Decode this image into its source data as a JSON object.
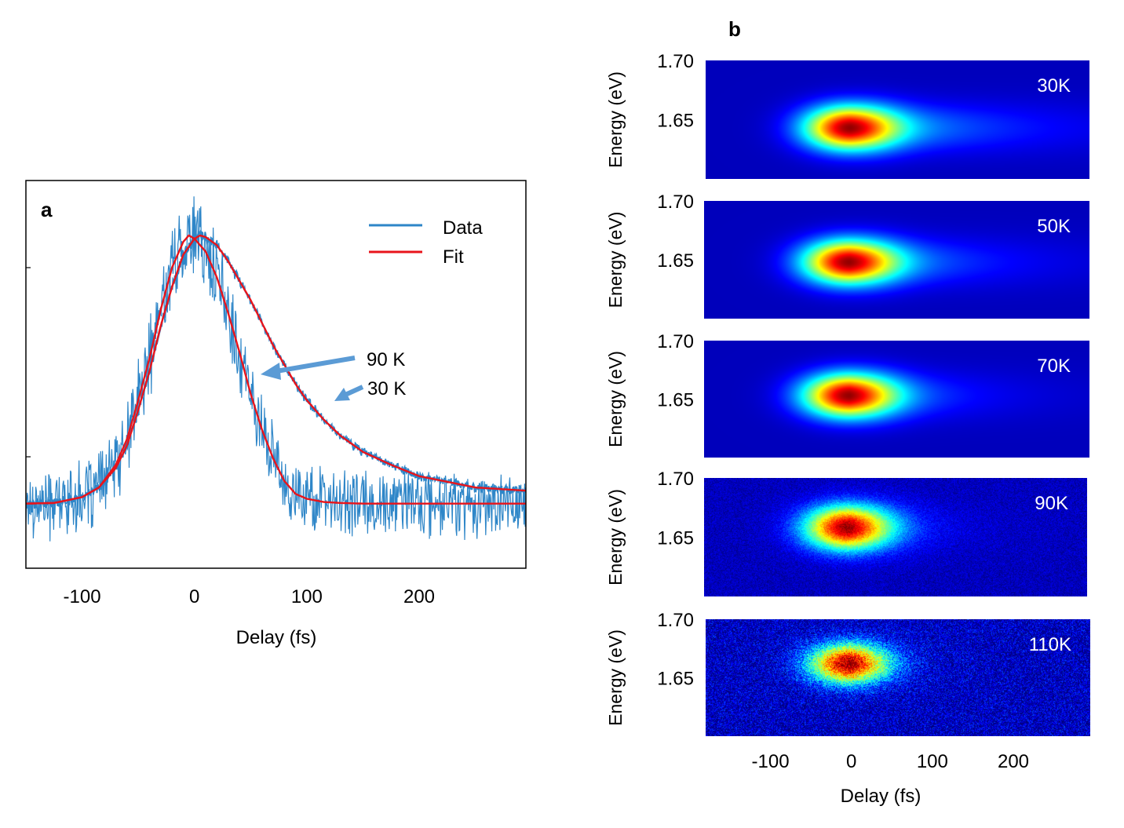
{
  "colors": {
    "data_line": "#2e86c8",
    "fit_line": "#e8141b",
    "arrow": "#5b9bd5",
    "heatmap_bg": "#00008f",
    "panel_label": "#ffffff"
  },
  "chart_data": [
    {
      "panel": "a",
      "type": "line",
      "title": "",
      "xlabel": "Delay (fs)",
      "ylabel": "",
      "xlim": [
        -150,
        295
      ],
      "ylim": [
        -0.05,
        1.15
      ],
      "xticks": [
        -100,
        0,
        100,
        200
      ],
      "xtick_labels": [
        "-100",
        "0",
        "100",
        "200"
      ],
      "grid": false,
      "legend": {
        "position": "top-right",
        "entries": [
          {
            "label": "Data",
            "color": "#2e86c8"
          },
          {
            "label": "Fit",
            "color": "#e8141b"
          }
        ]
      },
      "annotations": [
        {
          "text": "90 K",
          "points_to": {
            "x": 65,
            "y": 0.56
          }
        },
        {
          "text": "30 K",
          "points_to": {
            "x": 130,
            "y": 0.45
          }
        }
      ],
      "series": [
        {
          "name": "90 K fit",
          "style": "fit",
          "baseline": 0.15,
          "peak": 0.98,
          "x": [
            -150,
            -125,
            -100,
            -85,
            -70,
            -60,
            -50,
            -40,
            -30,
            -20,
            -10,
            -5,
            0,
            10,
            20,
            30,
            40,
            50,
            60,
            70,
            80,
            90,
            100,
            115,
            130,
            150,
            175,
            200,
            250,
            295
          ],
          "y": [
            0.15,
            0.152,
            0.17,
            0.2,
            0.27,
            0.35,
            0.47,
            0.6,
            0.75,
            0.88,
            0.96,
            0.98,
            0.97,
            0.93,
            0.85,
            0.74,
            0.62,
            0.49,
            0.38,
            0.29,
            0.22,
            0.18,
            0.165,
            0.155,
            0.152,
            0.15,
            0.15,
            0.15,
            0.15,
            0.15
          ]
        },
        {
          "name": "30 K fit",
          "style": "fit",
          "baseline": 0.15,
          "peak": 0.98,
          "x": [
            -150,
            -125,
            -100,
            -85,
            -70,
            -60,
            -50,
            -40,
            -30,
            -20,
            -10,
            0,
            5,
            10,
            20,
            30,
            40,
            50,
            60,
            70,
            80,
            90,
            100,
            115,
            130,
            150,
            175,
            200,
            250,
            295
          ],
          "y": [
            0.15,
            0.152,
            0.17,
            0.2,
            0.26,
            0.33,
            0.44,
            0.56,
            0.7,
            0.82,
            0.92,
            0.97,
            0.98,
            0.975,
            0.95,
            0.9,
            0.84,
            0.78,
            0.71,
            0.64,
            0.58,
            0.52,
            0.47,
            0.41,
            0.36,
            0.31,
            0.27,
            0.235,
            0.2,
            0.19
          ]
        },
        {
          "name": "90 K data",
          "style": "data",
          "noise_amplitude": 0.09,
          "follows": "90 K fit"
        },
        {
          "name": "30 K data",
          "style": "data",
          "noise_amplitude": 0.012,
          "follows": "30 K fit"
        }
      ]
    },
    {
      "panel": "b",
      "type": "heatmap",
      "xlabel": "Delay (fs)",
      "ylabel": "Energy (eV)",
      "xlim": [
        -180,
        295
      ],
      "ylim": [
        1.6,
        1.7
      ],
      "xticks": [
        -100,
        0,
        100,
        200
      ],
      "xtick_labels": [
        "-100",
        "0",
        "100",
        "200"
      ],
      "yticks": [
        1.7,
        1.65
      ],
      "ytick_labels": [
        "1.70",
        "1.65"
      ],
      "colormap": "jet",
      "panels": [
        {
          "label": "30K",
          "center_delay": 0,
          "center_energy": 1.643,
          "peak_width": 40,
          "tail_length": 150,
          "energy_width": 0.013,
          "noise": 0.0
        },
        {
          "label": "50K",
          "center_delay": 0,
          "center_energy": 1.648,
          "peak_width": 40,
          "tail_length": 120,
          "energy_width": 0.013,
          "noise": 0.0
        },
        {
          "label": "70K",
          "center_delay": 0,
          "center_energy": 1.653,
          "peak_width": 40,
          "tail_length": 95,
          "energy_width": 0.013,
          "noise": 0.0
        },
        {
          "label": "90K",
          "center_delay": 0,
          "center_energy": 1.658,
          "peak_width": 38,
          "tail_length": 60,
          "energy_width": 0.013,
          "noise": 0.06
        },
        {
          "label": "110K",
          "center_delay": 0,
          "center_energy": 1.662,
          "peak_width": 36,
          "tail_length": 35,
          "energy_width": 0.012,
          "noise": 0.16
        }
      ]
    }
  ],
  "labels": {
    "panel_a": "a",
    "panel_b": "b",
    "legend_data": "Data",
    "legend_fit": "Fit",
    "anno_90": "90 K",
    "anno_30": "30 K",
    "a_xlabel": "Delay (fs)",
    "b_xlabel": "Delay (fs)",
    "b_ylabel": "Energy (eV)"
  }
}
